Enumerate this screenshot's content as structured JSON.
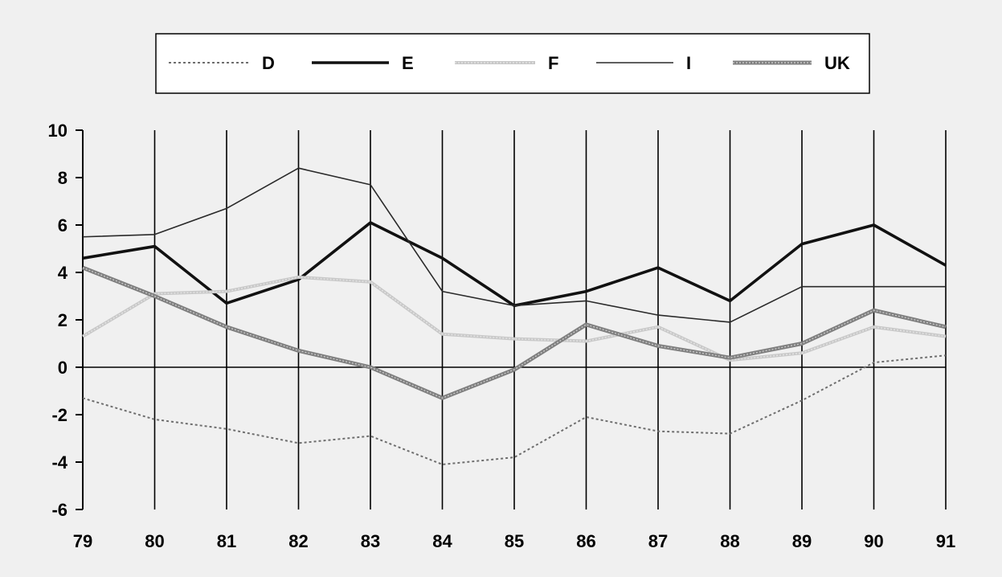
{
  "chart_data": {
    "type": "line",
    "title": "",
    "xlabel": "",
    "ylabel": "",
    "categories": [
      "79",
      "80",
      "81",
      "82",
      "83",
      "84",
      "85",
      "86",
      "87",
      "88",
      "89",
      "90",
      "91"
    ],
    "ylim": [
      -6,
      10
    ],
    "yticks": [
      "10",
      "8",
      "6",
      "4",
      "2",
      "0",
      "-2",
      "-4",
      "-6"
    ],
    "grid": "vertical lines at each category, horizontal zero line",
    "legend_position": "top",
    "series": [
      {
        "name": "D",
        "color": "#6e6e6e",
        "style": "dotted",
        "values": [
          -1.3,
          -2.2,
          -2.6,
          -3.2,
          -2.9,
          -4.1,
          -3.8,
          -2.1,
          -2.7,
          -2.8,
          -1.4,
          0.2,
          0.5
        ]
      },
      {
        "name": "E",
        "color": "#111111",
        "style": "thick",
        "values": [
          4.6,
          5.1,
          2.7,
          3.7,
          6.1,
          4.6,
          2.6,
          3.2,
          4.2,
          2.8,
          5.2,
          6.0,
          4.3
        ]
      },
      {
        "name": "F",
        "color": "#c8c8c8",
        "style": "light",
        "values": [
          1.3,
          3.1,
          3.2,
          3.8,
          3.6,
          1.4,
          1.2,
          1.1,
          1.7,
          0.3,
          0.6,
          1.7,
          1.3
        ]
      },
      {
        "name": "I",
        "color": "#2a2a2a",
        "style": "thin",
        "values": [
          5.5,
          5.6,
          6.7,
          8.4,
          7.7,
          3.2,
          2.6,
          2.8,
          2.2,
          1.9,
          3.4,
          3.4,
          3.4
        ]
      },
      {
        "name": "UK",
        "color": "#7f7f7f",
        "style": "double",
        "values": [
          4.2,
          3.0,
          1.7,
          0.7,
          0.0,
          -1.3,
          -0.1,
          1.8,
          0.9,
          0.4,
          1.0,
          2.4,
          1.7
        ]
      }
    ]
  }
}
